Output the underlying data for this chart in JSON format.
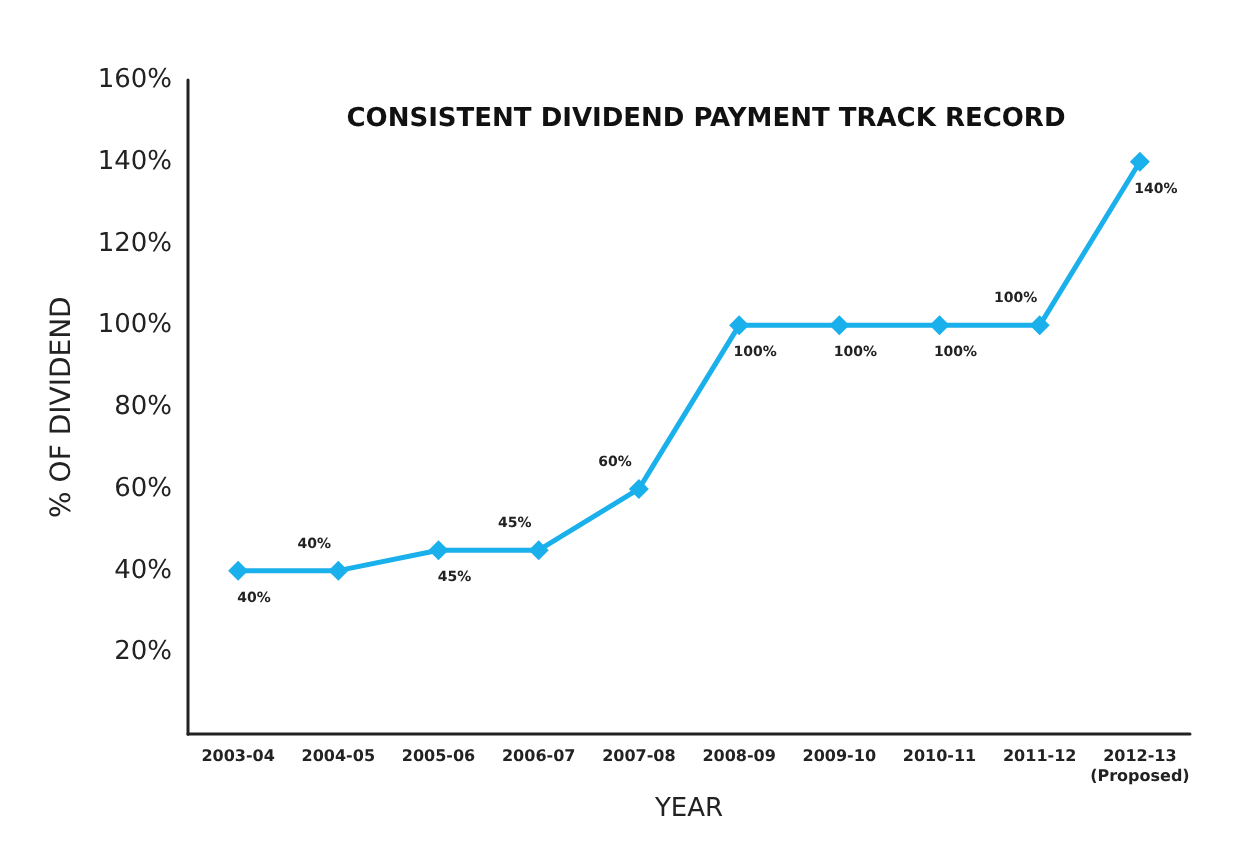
{
  "chart_data": {
    "type": "line",
    "title": "CONSISTENT DIVIDEND PAYMENT TRACK RECORD",
    "xlabel": "YEAR",
    "ylabel": "% OF DIVIDEND",
    "categories": [
      "2003-04",
      "2004-05",
      "2005-06",
      "2006-07",
      "2007-08",
      "2008-09",
      "2009-10",
      "2010-11",
      "2011-12",
      "2012-13\n(Proposed)"
    ],
    "series": [
      {
        "color": "#1ab0ec",
        "values": [
          40,
          40,
          45,
          45,
          60,
          100,
          100,
          100,
          100,
          140
        ],
        "value_labels": [
          "40%",
          "40%",
          "45%",
          "45%",
          "60%",
          "100%",
          "100%",
          "100%",
          "100%",
          "140%"
        ]
      }
    ],
    "ylim": [
      0,
      160
    ],
    "yticks": [
      {
        "value": 20,
        "label": "20%"
      },
      {
        "value": 40,
        "label": "40%"
      },
      {
        "value": 60,
        "label": "60%"
      },
      {
        "value": 80,
        "label": "80%"
      },
      {
        "value": 100,
        "label": "100%"
      },
      {
        "value": 120,
        "label": "120%"
      },
      {
        "value": 140,
        "label": "140%"
      },
      {
        "value": 160,
        "label": "160%"
      }
    ],
    "grid": false,
    "marker": "diamond",
    "line_style": "solid"
  }
}
